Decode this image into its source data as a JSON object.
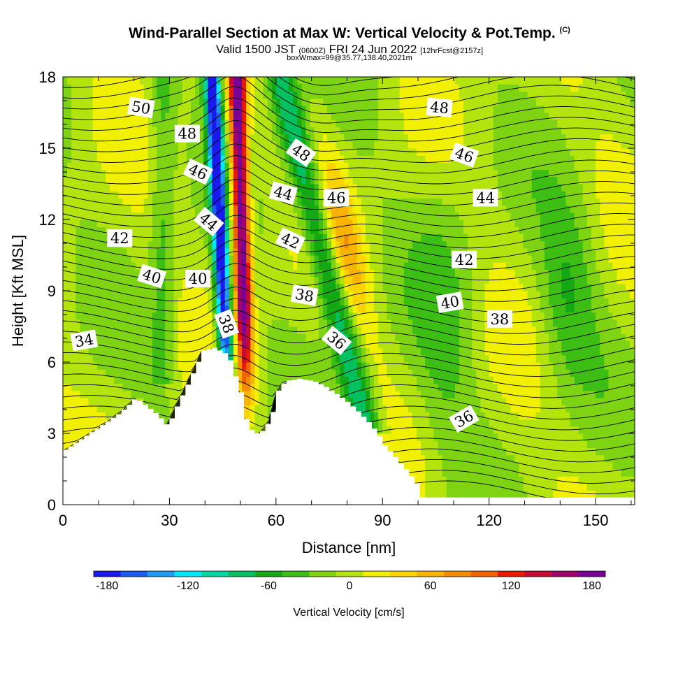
{
  "chart_data": {
    "type": "heatmap",
    "title": "Wind-Parallel Section at Max W: Vertical Velocity & Pot.Temp.",
    "copyright": "(C)",
    "subtitle_main": "Valid 1500 JST",
    "subtitle_utc": "(0600Z)",
    "subtitle_date": "FRI 24 Jun 2022",
    "subtitle_fcst": "[12hrFcst@2157z]",
    "subline": "boxWmax=99@35.77,138.40,2021m",
    "xlabel": "Distance [nm]",
    "ylabel": "Height [Kft MSL]",
    "xlim": [
      0,
      161
    ],
    "ylim": [
      0,
      18
    ],
    "x_ticks": [
      0,
      30,
      60,
      90,
      120,
      150
    ],
    "y_ticks": [
      0,
      3,
      6,
      9,
      12,
      15,
      18
    ],
    "colorbar": {
      "label": "Vertical Velocity [cm/s]",
      "ticks": [
        -180,
        -120,
        -60,
        0,
        60,
        120,
        180
      ],
      "colors": [
        "#1a1aee",
        "#1a5cf0",
        "#1f9af0",
        "#00e8f5",
        "#00d6a0",
        "#00c060",
        "#14a814",
        "#3cbe14",
        "#7ed412",
        "#b4e40e",
        "#f0f000",
        "#fad400",
        "#f8b400",
        "#f48c00",
        "#f06400",
        "#e81a00",
        "#c80a32",
        "#a0006e",
        "#7a0096"
      ]
    },
    "field_pattern": [
      {
        "name": "updraft",
        "center_x": [
          52,
          49
        ],
        "w_max": 180
      },
      {
        "name": "downdraft",
        "center_x": [
          42,
          47
        ],
        "w_min": -180
      },
      {
        "name": "secondary-downdraft",
        "center_x": [
          61,
          86
        ],
        "w_min": -90
      }
    ],
    "terrain_profile": {
      "x": [
        0,
        3,
        6,
        9,
        12,
        15,
        18,
        20,
        26,
        29,
        32,
        35,
        39,
        42,
        46,
        48,
        50,
        51,
        53,
        55,
        58,
        60,
        62,
        66,
        70,
        73,
        76,
        79,
        82,
        84,
        86,
        88,
        90,
        93,
        96,
        99,
        100,
        161
      ],
      "height": [
        2.3,
        2.6,
        2.9,
        3.2,
        3.5,
        3.8,
        4.2,
        4.5,
        3.8,
        3.3,
        4.3,
        5.2,
        6.5,
        6.6,
        6.3,
        5.4,
        4.5,
        3.6,
        3.0,
        3.0,
        3.6,
        4.8,
        5.2,
        5.3,
        5.2,
        5.0,
        4.7,
        4.4,
        4.0,
        3.7,
        3.4,
        3.0,
        2.5,
        2.0,
        1.5,
        0.9,
        0.3,
        0.3
      ]
    },
    "theta_contours": {
      "label_units": "Pot.Temp.",
      "labels": [
        {
          "text": "50",
          "x": 22,
          "y": 16.7,
          "angle": 10
        },
        {
          "text": "48",
          "x": 35,
          "y": 15.6,
          "angle": 0
        },
        {
          "text": "46",
          "x": 38,
          "y": 14.0,
          "angle": 25
        },
        {
          "text": "44",
          "x": 41,
          "y": 11.9,
          "angle": 40
        },
        {
          "text": "42",
          "x": 16,
          "y": 11.2,
          "angle": 0
        },
        {
          "text": "40",
          "x": 25,
          "y": 9.6,
          "angle": 18
        },
        {
          "text": "40",
          "x": 38,
          "y": 9.5,
          "angle": 0
        },
        {
          "text": "38",
          "x": 46,
          "y": 7.6,
          "angle": 70
        },
        {
          "text": "34",
          "x": 6,
          "y": 6.9,
          "angle": -10
        },
        {
          "text": "48",
          "x": 67,
          "y": 14.8,
          "angle": 35
        },
        {
          "text": "44",
          "x": 62,
          "y": 13.1,
          "angle": 15
        },
        {
          "text": "46",
          "x": 77,
          "y": 12.9,
          "angle": 0
        },
        {
          "text": "42",
          "x": 64,
          "y": 11.1,
          "angle": 25
        },
        {
          "text": "38",
          "x": 68,
          "y": 8.8,
          "angle": 10
        },
        {
          "text": "36",
          "x": 77,
          "y": 6.9,
          "angle": 40
        },
        {
          "text": "48",
          "x": 106,
          "y": 16.7,
          "angle": 5
        },
        {
          "text": "46",
          "x": 113,
          "y": 14.7,
          "angle": 20
        },
        {
          "text": "44",
          "x": 119,
          "y": 12.9,
          "angle": 0
        },
        {
          "text": "42",
          "x": 113,
          "y": 10.3,
          "angle": 0
        },
        {
          "text": "40",
          "x": 109,
          "y": 8.5,
          "angle": -10
        },
        {
          "text": "38",
          "x": 123,
          "y": 7.8,
          "angle": 0
        },
        {
          "text": "36",
          "x": 113,
          "y": 3.6,
          "angle": -30
        }
      ]
    }
  }
}
